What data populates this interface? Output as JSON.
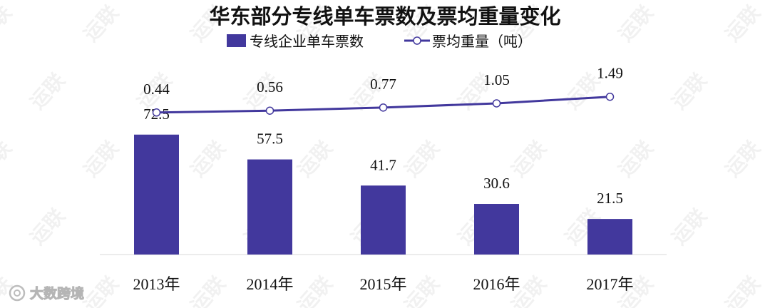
{
  "watermark": "运联",
  "logo_text": "大数跨境",
  "colors": {
    "bar": "#42389d",
    "line": "#42389d",
    "marker_fill": "#ffffff",
    "axis": "#d9d9d9"
  },
  "chart_data": {
    "type": "bar",
    "title": "华东部分专线单车票数及票均重量变化",
    "categories": [
      "2013年",
      "2014年",
      "2015年",
      "2016年",
      "2017年"
    ],
    "series": [
      {
        "name": "专线企业单车票数",
        "type": "bar",
        "axis": "primary",
        "values": [
          72.5,
          57.5,
          41.7,
          30.6,
          21.5
        ]
      },
      {
        "name": "票均重量（吨）",
        "type": "line",
        "axis": "secondary",
        "marker": "circle",
        "values": [
          0.44,
          0.56,
          0.77,
          1.05,
          1.49
        ]
      }
    ],
    "legend_position": "top",
    "grid": false,
    "data_labels": true
  }
}
